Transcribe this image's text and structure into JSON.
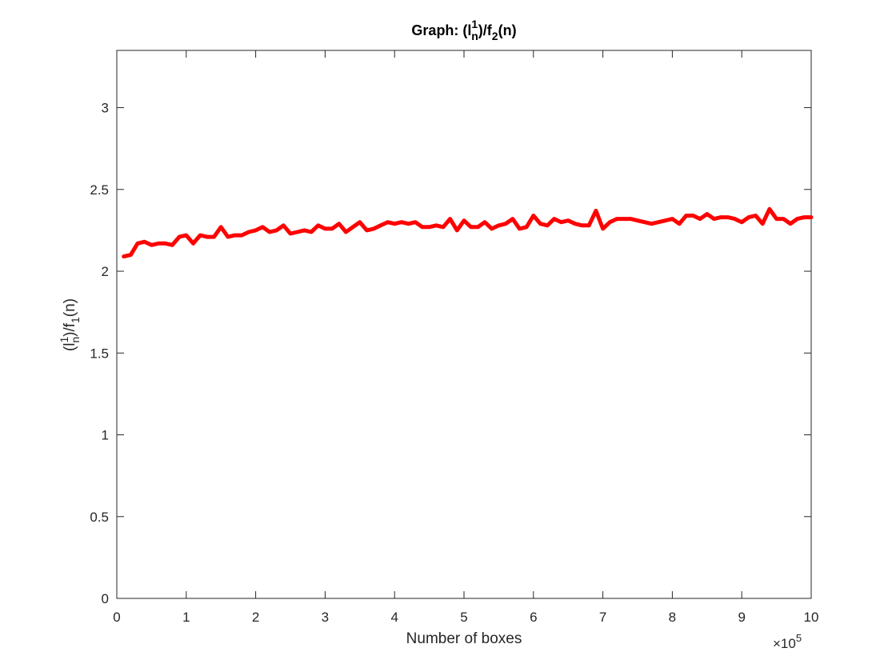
{
  "chart_data": {
    "type": "line",
    "title": {
      "prefix": "Graph: (l",
      "sup": "1",
      "sub": "n",
      "mid": ")/f",
      "sub2": "2",
      "suffix": "(n)"
    },
    "xlabel": "Number of boxes",
    "ylabel": {
      "prefix": "(l",
      "sup": "1",
      "sub": "n",
      "mid": ")/f",
      "sub2": "1",
      "suffix": "(n)"
    },
    "x_exponent": {
      "base": "×10",
      "power": "5"
    },
    "xlim": [
      0,
      10
    ],
    "ylim": [
      0,
      3.35
    ],
    "xticks": [
      0,
      1,
      2,
      3,
      4,
      5,
      6,
      7,
      8,
      9,
      10
    ],
    "xtick_labels": [
      "0",
      "1",
      "2",
      "3",
      "4",
      "5",
      "6",
      "7",
      "8",
      "9",
      "10"
    ],
    "yticks": [
      0,
      0.5,
      1,
      1.5,
      2,
      2.5,
      3
    ],
    "ytick_labels": [
      "0",
      "0.5",
      "1",
      "1.5",
      "2",
      "2.5",
      "3"
    ],
    "grid": false,
    "line_color": "#ff0000",
    "series": [
      {
        "x": [
          0.1,
          0.2,
          0.3,
          0.4,
          0.5,
          0.6,
          0.7,
          0.8,
          0.9,
          1.0,
          1.1,
          1.2,
          1.3,
          1.4,
          1.5,
          1.6,
          1.7,
          1.8,
          1.9,
          2.0,
          2.1,
          2.2,
          2.3,
          2.4,
          2.5,
          2.6,
          2.7,
          2.8,
          2.9,
          3.0,
          3.1,
          3.2,
          3.3,
          3.4,
          3.5,
          3.6,
          3.7,
          3.8,
          3.9,
          4.0,
          4.1,
          4.2,
          4.3,
          4.4,
          4.5,
          4.6,
          4.7,
          4.8,
          4.9,
          5.0,
          5.1,
          5.2,
          5.3,
          5.4,
          5.5,
          5.6,
          5.7,
          5.8,
          5.9,
          6.0,
          6.1,
          6.2,
          6.3,
          6.4,
          6.5,
          6.6,
          6.7,
          6.8,
          6.9,
          7.0,
          7.1,
          7.2,
          7.3,
          7.4,
          7.5,
          7.6,
          7.7,
          7.8,
          7.9,
          8.0,
          8.1,
          8.2,
          8.3,
          8.4,
          8.5,
          8.6,
          8.7,
          8.8,
          8.9,
          9.0,
          9.1,
          9.2,
          9.3,
          9.4,
          9.5,
          9.6,
          9.7,
          9.8,
          9.9,
          10.0
        ],
        "y": [
          2.09,
          2.1,
          2.17,
          2.18,
          2.16,
          2.17,
          2.17,
          2.16,
          2.21,
          2.22,
          2.17,
          2.22,
          2.21,
          2.21,
          2.27,
          2.21,
          2.22,
          2.22,
          2.24,
          2.25,
          2.27,
          2.24,
          2.25,
          2.28,
          2.23,
          2.24,
          2.25,
          2.24,
          2.28,
          2.26,
          2.26,
          2.29,
          2.24,
          2.27,
          2.3,
          2.25,
          2.26,
          2.28,
          2.3,
          2.29,
          2.3,
          2.29,
          2.3,
          2.27,
          2.27,
          2.28,
          2.27,
          2.32,
          2.25,
          2.31,
          2.27,
          2.27,
          2.3,
          2.26,
          2.28,
          2.29,
          2.32,
          2.26,
          2.27,
          2.34,
          2.29,
          2.28,
          2.32,
          2.3,
          2.31,
          2.29,
          2.28,
          2.28,
          2.37,
          2.26,
          2.3,
          2.32,
          2.32,
          2.32,
          2.31,
          2.3,
          2.29,
          2.3,
          2.31,
          2.32,
          2.29,
          2.34,
          2.34,
          2.32,
          2.35,
          2.32,
          2.33,
          2.33,
          2.32,
          2.3,
          2.33,
          2.34,
          2.29,
          2.38,
          2.32,
          2.32,
          2.29,
          2.32,
          2.33,
          2.33
        ]
      }
    ]
  }
}
